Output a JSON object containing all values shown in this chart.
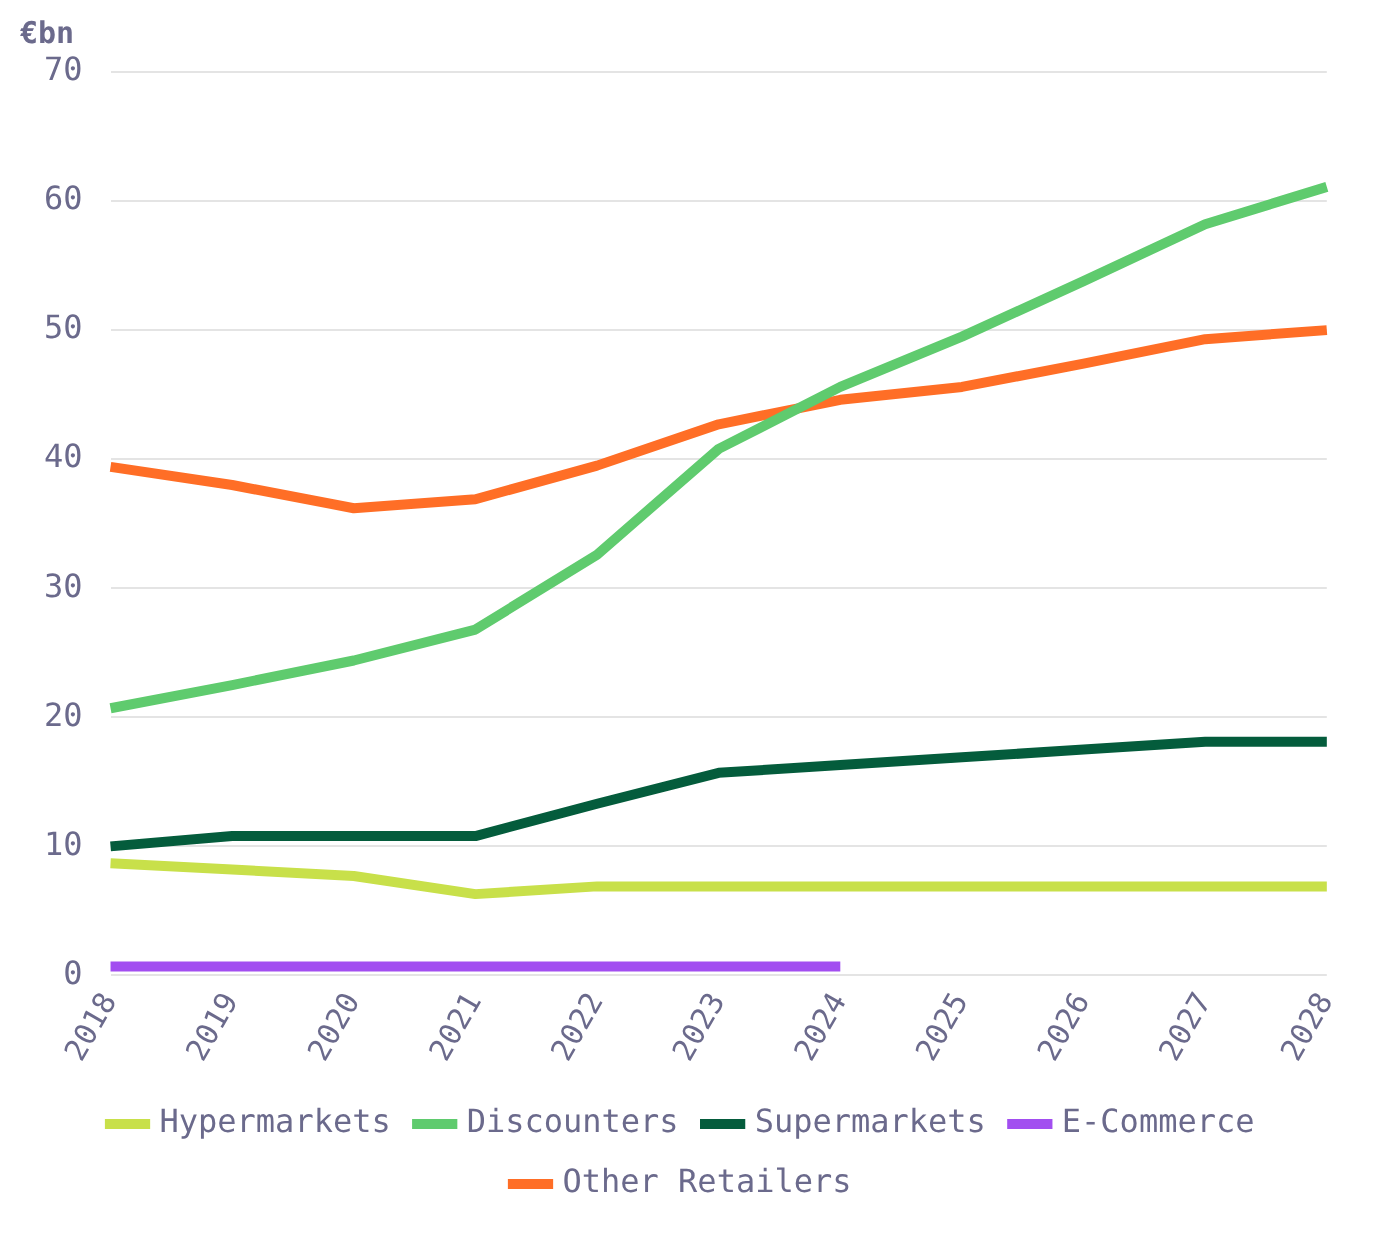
{
  "chart_data": {
    "type": "line",
    "ylabel": "€bn",
    "categories": [
      "2018",
      "2019",
      "2020",
      "2021",
      "2022",
      "2023",
      "2024",
      "2025",
      "2026",
      "2027",
      "2028"
    ],
    "series": [
      {
        "name": "Hypermarkets",
        "color": "#c8e04a",
        "values": [
          8.7,
          8.2,
          7.7,
          6.3,
          6.9,
          6.9,
          6.9,
          6.9,
          6.9,
          6.9,
          6.9
        ]
      },
      {
        "name": "Discounters",
        "color": "#5fcb6e",
        "values": [
          20.7,
          22.5,
          24.4,
          26.8,
          32.6,
          40.8,
          45.6,
          49.5,
          53.8,
          58.2,
          61.1
        ]
      },
      {
        "name": "Supermarkets",
        "color": "#045c3c",
        "values": [
          10,
          10.8,
          10.8,
          10.8,
          13.3,
          15.7,
          16.3,
          16.9,
          17.5,
          18.1,
          18.1
        ]
      },
      {
        "name": "E-Commerce",
        "color": "#a24ef0",
        "values": [
          0.7,
          0.7,
          0.7,
          0.7,
          0.7,
          0.7,
          0.7,
          null,
          null,
          null,
          null
        ]
      },
      {
        "name": "Other Retailers",
        "color": "#ff6e26",
        "values": [
          39.4,
          38,
          36.2,
          36.9,
          39.5,
          42.7,
          44.6,
          45.6,
          47.4,
          49.3,
          50
        ]
      }
    ],
    "ylim": [
      0,
      70
    ],
    "yticks": [
      0,
      10,
      20,
      30,
      40,
      50,
      60,
      70
    ],
    "grid": "y",
    "legend": "bottom",
    "marker": "none",
    "line_style": "solid"
  }
}
